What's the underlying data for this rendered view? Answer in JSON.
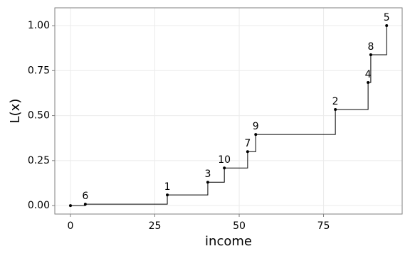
{
  "chart_data": {
    "type": "step",
    "x_label": "income",
    "y_label": "L(x)",
    "x": [
      0,
      4.4,
      28.7,
      40.7,
      45.6,
      52.5,
      54.9,
      78.5,
      88.2,
      89.0,
      93.7
    ],
    "y": [
      0,
      0.008,
      0.059,
      0.13,
      0.209,
      0.3,
      0.395,
      0.534,
      0.684,
      0.838,
      1.0
    ],
    "labels": [
      null,
      "6",
      "1",
      "3",
      "10",
      "7",
      "9",
      "2",
      "4",
      "8",
      "5"
    ],
    "color": "#000000",
    "xlim": [
      -4.64,
      98.3
    ],
    "ylim": [
      -0.047,
      1.099
    ],
    "xticks": [
      0,
      25,
      50,
      75
    ],
    "yticks": [
      {
        "value": 0,
        "label": "0.00"
      },
      {
        "value": 0.25,
        "label": "0.25"
      },
      {
        "value": 0.5,
        "label": "0.50"
      },
      {
        "value": 0.75,
        "label": "0.75"
      },
      {
        "value": 1,
        "label": "1.00"
      }
    ],
    "grid": true
  }
}
